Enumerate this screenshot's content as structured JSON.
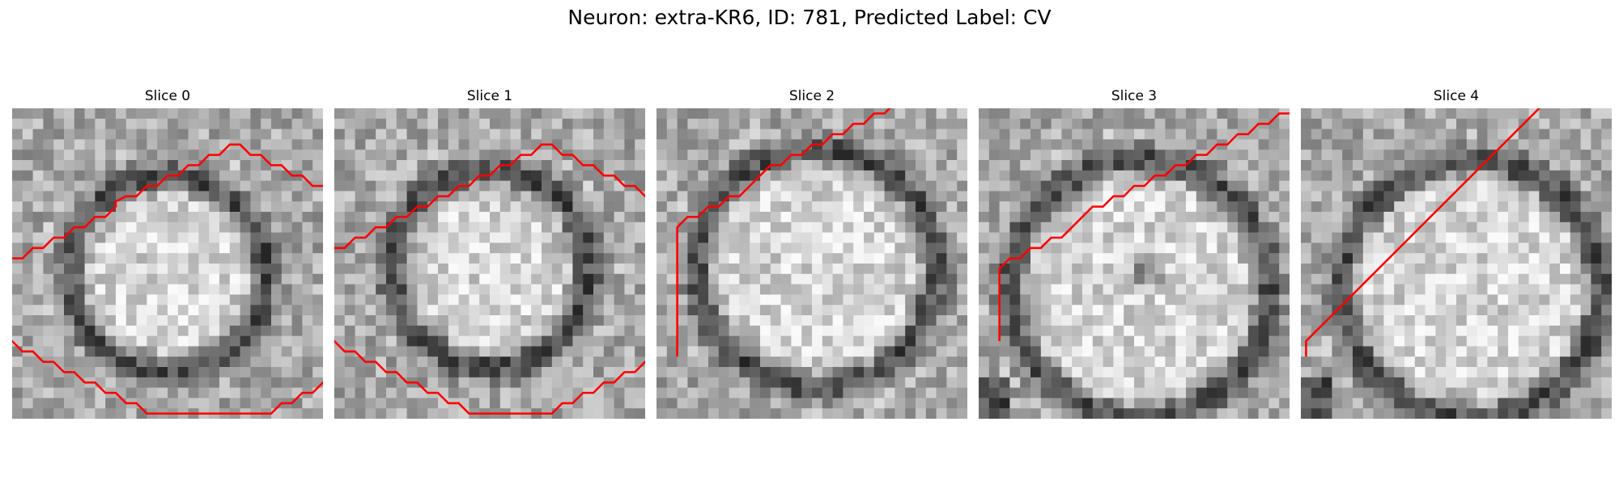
{
  "figure": {
    "title": "Neuron: extra-KR6, ID: 781, Predicted Label: CV",
    "colormap": "gray",
    "contour_color": "#ff0000"
  },
  "slices": [
    {
      "title": "Slice 0",
      "seed": 11,
      "contour": [
        [
          -1,
          15.5
        ],
        [
          0,
          14.5
        ],
        [
          1,
          14.5
        ],
        [
          2,
          13.5
        ],
        [
          3,
          13.5
        ],
        [
          4,
          12.5
        ],
        [
          5,
          12.5
        ],
        [
          6,
          11.5
        ],
        [
          7,
          11.5
        ],
        [
          8,
          10.5
        ],
        [
          9,
          10.5
        ],
        [
          10,
          9.5
        ],
        [
          10,
          9
        ],
        [
          11,
          8.5
        ],
        [
          12,
          8.5
        ],
        [
          13,
          7.5
        ],
        [
          14,
          7.5
        ],
        [
          15,
          6.5
        ],
        [
          16,
          6.5
        ],
        [
          17,
          5.5
        ],
        [
          18,
          5.5
        ],
        [
          19,
          4.5
        ],
        [
          20,
          4.5
        ],
        [
          21,
          3.5
        ],
        [
          22,
          3.5
        ],
        [
          23,
          4.5
        ],
        [
          24,
          4.5
        ],
        [
          25,
          5.5
        ],
        [
          26,
          5.5
        ],
        [
          27,
          6.5
        ],
        [
          28,
          6.5
        ],
        [
          29,
          7.5
        ],
        [
          30,
          7.5
        ],
        [
          31,
          8.5
        ],
        [
          32,
          8.5
        ],
        [
          33,
          9.5
        ],
        [
          33,
          23.5
        ],
        [
          32,
          24.5
        ],
        [
          32,
          25.5
        ],
        [
          31,
          26.5
        ],
        [
          30,
          26.5
        ],
        [
          29,
          27.5
        ],
        [
          28,
          27.5
        ],
        [
          27,
          28.5
        ],
        [
          26,
          28.5
        ],
        [
          25,
          29.5
        ],
        [
          24,
          29.5
        ],
        [
          13,
          29.5
        ],
        [
          12,
          28.5
        ],
        [
          11,
          28.5
        ],
        [
          10,
          27.5
        ],
        [
          9,
          27.5
        ],
        [
          8,
          26.5
        ],
        [
          7,
          26.5
        ],
        [
          6,
          25.5
        ],
        [
          5,
          25.5
        ],
        [
          4,
          24.5
        ],
        [
          3,
          24.5
        ],
        [
          2,
          23.5
        ],
        [
          1,
          23.5
        ],
        [
          0,
          22.5
        ],
        [
          -1,
          21.5
        ]
      ]
    },
    {
      "title": "Slice 1",
      "seed": 23,
      "contour": [
        [
          -1,
          14.5
        ],
        [
          0,
          13.5
        ],
        [
          1,
          13.5
        ],
        [
          2,
          12.5
        ],
        [
          3,
          12.5
        ],
        [
          4,
          11.5
        ],
        [
          5,
          11.5
        ],
        [
          6,
          10.5
        ],
        [
          7,
          10.5
        ],
        [
          8,
          9.5
        ],
        [
          9,
          9.5
        ],
        [
          10,
          8.5
        ],
        [
          11,
          8.5
        ],
        [
          12,
          7.5
        ],
        [
          13,
          7.5
        ],
        [
          14,
          6.5
        ],
        [
          15,
          6.5
        ],
        [
          16,
          5.5
        ],
        [
          17,
          5.5
        ],
        [
          18,
          4.5
        ],
        [
          19,
          4.5
        ],
        [
          20,
          3.5
        ],
        [
          21,
          3.5
        ],
        [
          22,
          4.5
        ],
        [
          23,
          4.5
        ],
        [
          24,
          5.5
        ],
        [
          25,
          5.5
        ],
        [
          26,
          6.5
        ],
        [
          27,
          6.5
        ],
        [
          28,
          7.5
        ],
        [
          29,
          7.5
        ],
        [
          30,
          8.5
        ],
        [
          31,
          8.5
        ],
        [
          32,
          9.5
        ],
        [
          32,
          23.5
        ],
        [
          31,
          24.5
        ],
        [
          30,
          24.5
        ],
        [
          29,
          25.5
        ],
        [
          28,
          25.5
        ],
        [
          27,
          26.5
        ],
        [
          26,
          26.5
        ],
        [
          25,
          27.5
        ],
        [
          24,
          27.5
        ],
        [
          23,
          28.5
        ],
        [
          22,
          28.5
        ],
        [
          21,
          29.5
        ],
        [
          13,
          29.5
        ],
        [
          12,
          28.5
        ],
        [
          11,
          28.5
        ],
        [
          10,
          27.5
        ],
        [
          9,
          27.5
        ],
        [
          8,
          26.5
        ],
        [
          7,
          26.5
        ],
        [
          6,
          25.5
        ],
        [
          5,
          25.5
        ],
        [
          4,
          24.5
        ],
        [
          3,
          24.5
        ],
        [
          2,
          23.5
        ],
        [
          1,
          23.5
        ],
        [
          0,
          22.5
        ],
        [
          -1,
          21.5
        ]
      ]
    },
    {
      "title": "Slice 2",
      "seed": 37,
      "contour": [
        [
          2,
          24
        ],
        [
          2,
          11.5
        ],
        [
          3,
          10.5
        ],
        [
          4,
          10.5
        ],
        [
          5,
          9.5
        ],
        [
          6,
          9.5
        ],
        [
          7,
          8.5
        ],
        [
          8,
          8.5
        ],
        [
          9,
          7.5
        ],
        [
          10,
          6.5
        ],
        [
          11,
          5.5
        ],
        [
          12,
          5.5
        ],
        [
          13,
          4.5
        ],
        [
          14,
          4.5
        ],
        [
          15,
          3.5
        ],
        [
          16,
          3.5
        ],
        [
          17,
          2.5
        ],
        [
          18,
          2.5
        ],
        [
          19,
          1.5
        ],
        [
          20,
          1.5
        ],
        [
          21,
          0.5
        ],
        [
          22,
          0.5
        ],
        [
          23,
          -0.5
        ],
        [
          42,
          -0.5
        ],
        [
          43,
          0.5
        ],
        [
          44,
          1.5
        ],
        [
          45,
          1.5
        ],
        [
          46,
          2.5
        ],
        [
          47,
          2.5
        ],
        [
          47,
          5
        ]
      ]
    },
    {
      "title": "Slice 3",
      "seed": 53,
      "contour": [
        [
          2,
          22.5
        ],
        [
          2,
          15.5
        ],
        [
          3,
          14.5
        ],
        [
          4,
          14.5
        ],
        [
          5,
          13.5
        ],
        [
          6,
          13.5
        ],
        [
          7,
          12.5
        ],
        [
          8,
          12.5
        ],
        [
          9,
          11.5
        ],
        [
          10,
          10.5
        ],
        [
          11,
          9.5
        ],
        [
          12,
          9.5
        ],
        [
          13,
          8.5
        ],
        [
          14,
          8.5
        ],
        [
          15,
          7.5
        ],
        [
          16,
          7.5
        ],
        [
          17,
          6.5
        ],
        [
          18,
          6.5
        ],
        [
          19,
          5.5
        ],
        [
          20,
          5.5
        ],
        [
          21,
          4.5
        ],
        [
          22,
          4.5
        ],
        [
          23,
          3.5
        ],
        [
          24,
          3.5
        ],
        [
          25,
          2.5
        ],
        [
          26,
          2.5
        ],
        [
          27,
          1.5
        ],
        [
          28,
          1.5
        ],
        [
          29,
          0.5
        ],
        [
          41,
          0.5
        ],
        [
          42,
          1.5
        ],
        [
          43,
          2.5
        ],
        [
          44,
          3.5
        ],
        [
          45,
          4.5
        ],
        [
          46,
          5.5
        ],
        [
          47,
          6.5
        ],
        [
          48,
          7.5
        ],
        [
          49,
          8.5
        ],
        [
          50,
          8.5
        ]
      ]
    },
    {
      "title": "Slice 4",
      "seed": 71,
      "contour": [
        [
          0.5,
          24
        ],
        [
          0.5,
          22.5
        ],
        [
          1.5,
          21.5
        ],
        [
          2.5,
          20.5
        ],
        [
          3.5,
          19.5
        ],
        [
          4.5,
          18.5
        ],
        [
          5.5,
          17.5
        ],
        [
          6.5,
          16.5
        ],
        [
          7.5,
          15.5
        ],
        [
          8.5,
          14.5
        ],
        [
          9.5,
          13.5
        ],
        [
          10.5,
          12.5
        ],
        [
          11.5,
          11.5
        ],
        [
          12.5,
          10.5
        ],
        [
          13.5,
          9.5
        ],
        [
          14.5,
          8.5
        ],
        [
          15.5,
          7.5
        ],
        [
          16.5,
          6.5
        ],
        [
          17.5,
          5.5
        ],
        [
          18.5,
          4.5
        ],
        [
          19.5,
          3.5
        ],
        [
          20.5,
          2.5
        ],
        [
          21.5,
          1.5
        ],
        [
          22.5,
          0.5
        ],
        [
          23.5,
          -0.5
        ],
        [
          24.5,
          -1.5
        ],
        [
          25.5,
          -2.5
        ],
        [
          26.5,
          -3.5
        ],
        [
          27.5,
          -4.5
        ],
        [
          29.5,
          -5.5
        ]
      ]
    }
  ]
}
